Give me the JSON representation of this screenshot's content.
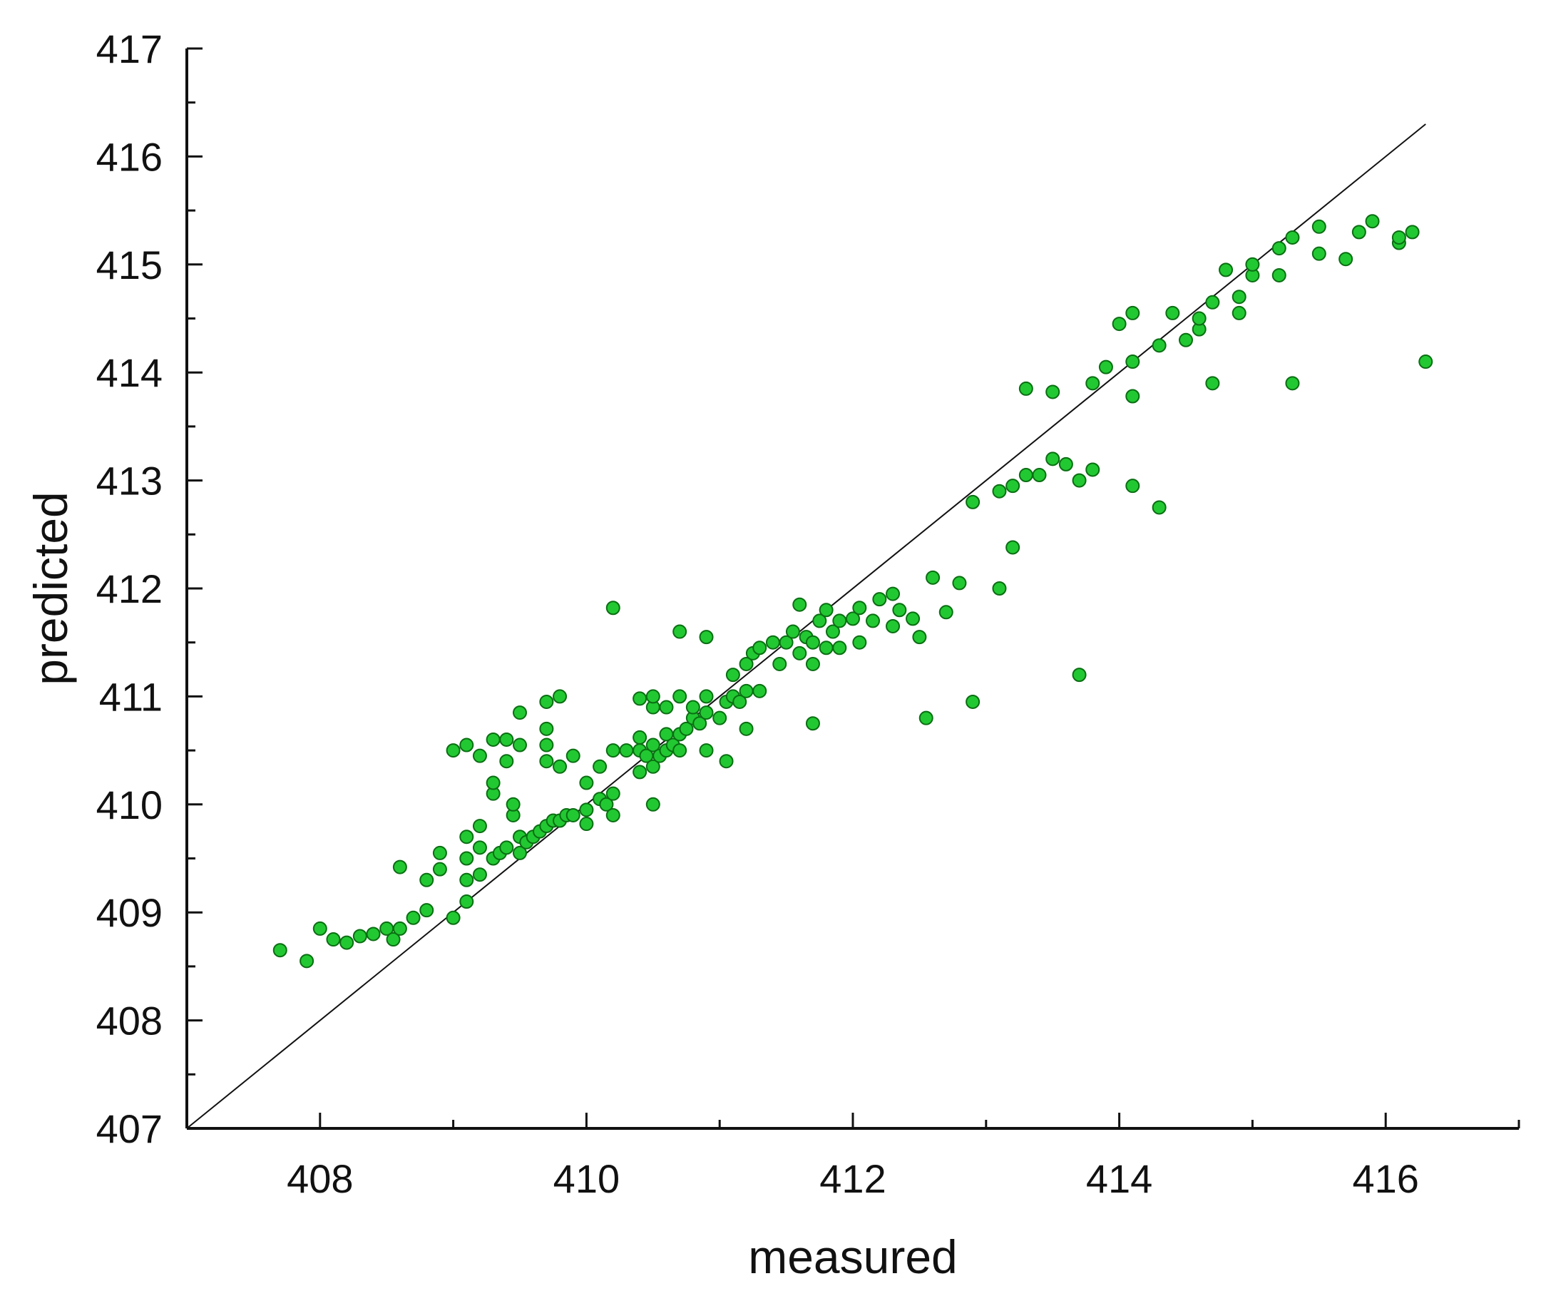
{
  "chart_data": {
    "type": "scatter",
    "title": "",
    "xlabel": "measured",
    "ylabel": "predicted",
    "xlim": [
      407,
      417
    ],
    "ylim": [
      407,
      417
    ],
    "x_ticks": [
      408,
      410,
      412,
      414,
      416
    ],
    "x_tick_labels": [
      "408",
      "410",
      "412",
      "414",
      "416"
    ],
    "x_minor_step": 1,
    "y_ticks": [
      407,
      408,
      409,
      410,
      411,
      412,
      413,
      414,
      415,
      416,
      417
    ],
    "y_tick_labels": [
      "407",
      "408",
      "409",
      "410",
      "411",
      "412",
      "413",
      "414",
      "415",
      "416",
      "417"
    ],
    "y_minor_step": 0.5,
    "grid": false,
    "legend": "none",
    "colors": {
      "marker_fill": "#22c832",
      "marker_edge": "#0a6e12",
      "reference_line": "#111111",
      "axes": "#111111"
    },
    "reference_line": {
      "from": [
        407,
        407
      ],
      "to": [
        416.3,
        416.3
      ]
    },
    "series": [
      {
        "points": [
          [
            407.7,
            408.65
          ],
          [
            407.9,
            408.55
          ],
          [
            408.0,
            408.85
          ],
          [
            408.1,
            408.75
          ],
          [
            408.2,
            408.72
          ],
          [
            408.3,
            408.78
          ],
          [
            408.4,
            408.8
          ],
          [
            408.5,
            408.85
          ],
          [
            408.55,
            408.75
          ],
          [
            408.6,
            408.85
          ],
          [
            408.6,
            409.42
          ],
          [
            408.7,
            408.95
          ],
          [
            408.8,
            409.02
          ],
          [
            408.8,
            409.3
          ],
          [
            408.9,
            409.4
          ],
          [
            408.9,
            409.55
          ],
          [
            409.0,
            408.95
          ],
          [
            409.0,
            410.5
          ],
          [
            409.1,
            409.1
          ],
          [
            409.1,
            409.3
          ],
          [
            409.1,
            409.5
          ],
          [
            409.1,
            409.7
          ],
          [
            409.1,
            410.55
          ],
          [
            409.2,
            409.35
          ],
          [
            409.2,
            409.6
          ],
          [
            409.2,
            409.8
          ],
          [
            409.2,
            410.45
          ],
          [
            409.3,
            409.5
          ],
          [
            409.3,
            410.1
          ],
          [
            409.3,
            410.2
          ],
          [
            409.3,
            410.6
          ],
          [
            409.35,
            409.55
          ],
          [
            409.4,
            409.6
          ],
          [
            409.4,
            410.4
          ],
          [
            409.4,
            410.6
          ],
          [
            409.45,
            409.9
          ],
          [
            409.45,
            410.0
          ],
          [
            409.5,
            409.55
          ],
          [
            409.5,
            409.7
          ],
          [
            409.5,
            410.55
          ],
          [
            409.5,
            410.85
          ],
          [
            409.55,
            409.65
          ],
          [
            409.6,
            409.7
          ],
          [
            409.65,
            409.75
          ],
          [
            409.7,
            409.8
          ],
          [
            409.7,
            410.4
          ],
          [
            409.7,
            410.55
          ],
          [
            409.7,
            410.7
          ],
          [
            409.7,
            410.95
          ],
          [
            409.75,
            409.85
          ],
          [
            409.8,
            409.85
          ],
          [
            409.8,
            410.35
          ],
          [
            409.8,
            411.0
          ],
          [
            409.85,
            409.9
          ],
          [
            409.9,
            409.9
          ],
          [
            409.9,
            410.45
          ],
          [
            410.0,
            409.95
          ],
          [
            410.0,
            409.82
          ],
          [
            410.0,
            410.2
          ],
          [
            410.1,
            410.05
          ],
          [
            410.1,
            410.35
          ],
          [
            410.15,
            410.0
          ],
          [
            410.2,
            409.9
          ],
          [
            410.2,
            410.1
          ],
          [
            410.2,
            410.5
          ],
          [
            410.2,
            411.82
          ],
          [
            410.3,
            410.5
          ],
          [
            410.4,
            410.3
          ],
          [
            410.4,
            410.5
          ],
          [
            410.4,
            410.62
          ],
          [
            410.4,
            410.98
          ],
          [
            410.45,
            410.45
          ],
          [
            410.5,
            410.0
          ],
          [
            410.5,
            410.35
          ],
          [
            410.5,
            410.55
          ],
          [
            410.5,
            410.9
          ],
          [
            410.5,
            411.0
          ],
          [
            410.55,
            410.45
          ],
          [
            410.6,
            410.5
          ],
          [
            410.6,
            410.65
          ],
          [
            410.6,
            410.9
          ],
          [
            410.65,
            410.55
          ],
          [
            410.7,
            410.5
          ],
          [
            410.7,
            410.65
          ],
          [
            410.7,
            411.0
          ],
          [
            410.7,
            411.6
          ],
          [
            410.75,
            410.7
          ],
          [
            410.8,
            410.8
          ],
          [
            410.8,
            410.9
          ],
          [
            410.85,
            410.75
          ],
          [
            410.9,
            410.5
          ],
          [
            410.9,
            410.85
          ],
          [
            410.9,
            411.0
          ],
          [
            410.9,
            411.55
          ],
          [
            411.0,
            410.8
          ],
          [
            411.05,
            410.95
          ],
          [
            411.05,
            410.4
          ],
          [
            411.1,
            411.0
          ],
          [
            411.1,
            411.2
          ],
          [
            411.15,
            410.95
          ],
          [
            411.2,
            410.7
          ],
          [
            411.2,
            411.05
          ],
          [
            411.2,
            411.3
          ],
          [
            411.25,
            411.4
          ],
          [
            411.3,
            411.05
          ],
          [
            411.3,
            411.45
          ],
          [
            411.4,
            411.5
          ],
          [
            411.45,
            411.3
          ],
          [
            411.5,
            411.5
          ],
          [
            411.55,
            411.6
          ],
          [
            411.6,
            411.4
          ],
          [
            411.6,
            411.85
          ],
          [
            411.65,
            411.55
          ],
          [
            411.7,
            411.3
          ],
          [
            411.7,
            411.5
          ],
          [
            411.7,
            410.75
          ],
          [
            411.75,
            411.7
          ],
          [
            411.8,
            411.45
          ],
          [
            411.8,
            411.8
          ],
          [
            411.85,
            411.6
          ],
          [
            411.9,
            411.45
          ],
          [
            411.9,
            411.7
          ],
          [
            412.0,
            411.72
          ],
          [
            412.05,
            411.5
          ],
          [
            412.05,
            411.82
          ],
          [
            412.15,
            411.7
          ],
          [
            412.2,
            411.9
          ],
          [
            412.3,
            411.65
          ],
          [
            412.3,
            411.95
          ],
          [
            412.35,
            411.8
          ],
          [
            412.45,
            411.72
          ],
          [
            412.5,
            411.55
          ],
          [
            412.55,
            410.8
          ],
          [
            412.6,
            412.1
          ],
          [
            412.7,
            411.78
          ],
          [
            412.8,
            412.05
          ],
          [
            412.9,
            412.8
          ],
          [
            412.9,
            410.95
          ],
          [
            413.1,
            412.0
          ],
          [
            413.1,
            412.9
          ],
          [
            413.2,
            412.95
          ],
          [
            413.2,
            412.38
          ],
          [
            413.3,
            413.05
          ],
          [
            413.3,
            413.85
          ],
          [
            413.4,
            413.05
          ],
          [
            413.5,
            413.2
          ],
          [
            413.5,
            413.82
          ],
          [
            413.6,
            413.15
          ],
          [
            413.7,
            413.0
          ],
          [
            413.7,
            411.2
          ],
          [
            413.8,
            413.1
          ],
          [
            413.8,
            413.9
          ],
          [
            413.9,
            414.05
          ],
          [
            414.0,
            414.45
          ],
          [
            414.1,
            414.1
          ],
          [
            414.1,
            414.55
          ],
          [
            414.1,
            413.78
          ],
          [
            414.1,
            412.95
          ],
          [
            414.3,
            414.25
          ],
          [
            414.3,
            412.75
          ],
          [
            414.4,
            414.55
          ],
          [
            414.5,
            414.3
          ],
          [
            414.6,
            414.4
          ],
          [
            414.6,
            414.5
          ],
          [
            414.7,
            413.9
          ],
          [
            414.7,
            414.65
          ],
          [
            414.8,
            414.95
          ],
          [
            414.9,
            414.55
          ],
          [
            414.9,
            414.7
          ],
          [
            415.0,
            414.9
          ],
          [
            415.0,
            415.0
          ],
          [
            415.2,
            414.9
          ],
          [
            415.2,
            415.15
          ],
          [
            415.3,
            415.25
          ],
          [
            415.3,
            413.9
          ],
          [
            415.5,
            415.1
          ],
          [
            415.5,
            415.35
          ],
          [
            415.7,
            415.05
          ],
          [
            415.8,
            415.3
          ],
          [
            415.9,
            415.4
          ],
          [
            416.1,
            415.2
          ],
          [
            416.1,
            415.25
          ],
          [
            416.2,
            415.3
          ],
          [
            416.3,
            414.1
          ]
        ]
      }
    ]
  }
}
